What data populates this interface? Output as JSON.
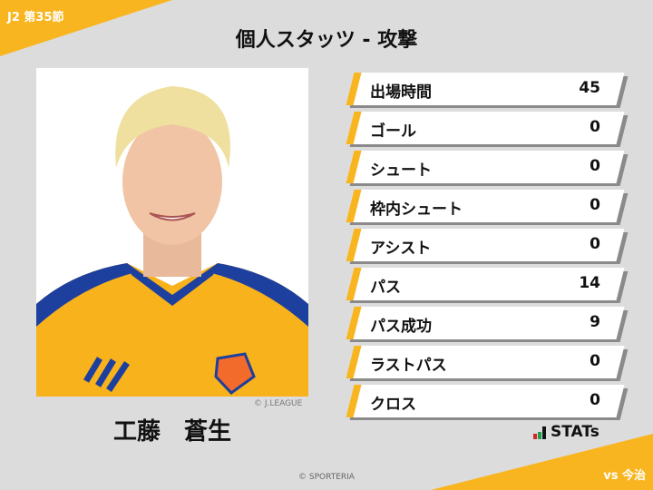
{
  "header": {
    "round": "J2 第35節",
    "title": "個人スタッツ - 攻撃",
    "opponent": "vs 今治"
  },
  "player": {
    "name": "工藤　蒼生",
    "photo_credit": "© J.LEAGUE"
  },
  "stats": [
    {
      "label": "出場時間",
      "value": "45"
    },
    {
      "label": "ゴール",
      "value": "0"
    },
    {
      "label": "シュート",
      "value": "0"
    },
    {
      "label": "枠内シュート",
      "value": "0"
    },
    {
      "label": "アシスト",
      "value": "0"
    },
    {
      "label": "パス",
      "value": "14"
    },
    {
      "label": "パス成功",
      "value": "9"
    },
    {
      "label": "ラストパス",
      "value": "0"
    },
    {
      "label": "クロス",
      "value": "0"
    }
  ],
  "brand": {
    "logo_text": "STATs"
  },
  "footer": {
    "copyright": "© SPORTERIA"
  },
  "colors": {
    "accent": "#f9b51f",
    "background": "#dcdcdc"
  }
}
